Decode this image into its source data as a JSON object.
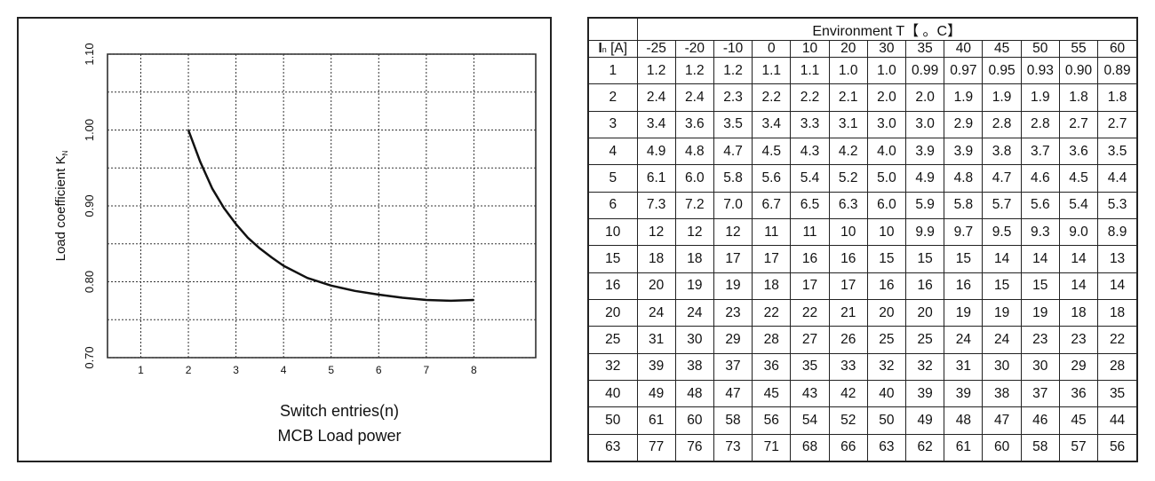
{
  "chart_data": {
    "type": "line",
    "xlabel": "Switch entries(n)",
    "caption": "MCB Load power",
    "ylabel": "Load coefficient K",
    "ylabel_sub": "N",
    "xlim": [
      0.3,
      9.3
    ],
    "ylim": [
      0.7,
      1.1
    ],
    "x_ticks": [
      1,
      2,
      3,
      4,
      5,
      6,
      7,
      8
    ],
    "y_ticks": [
      "0.70",
      "0.80",
      "0.90",
      "1.00",
      "1.10"
    ],
    "y_grid_minor": [
      0.75,
      0.85,
      0.95,
      1.05
    ],
    "grid": true,
    "series": [
      {
        "x": [
          2,
          2.25,
          2.5,
          2.75,
          3,
          3.25,
          3.5,
          3.75,
          4,
          4.5,
          5,
          5.5,
          6,
          6.5,
          7,
          7.5,
          8
        ],
        "values": [
          1.0,
          0.958,
          0.923,
          0.897,
          0.876,
          0.858,
          0.844,
          0.832,
          0.821,
          0.805,
          0.795,
          0.788,
          0.783,
          0.779,
          0.776,
          0.775,
          0.776
        ]
      }
    ]
  },
  "table": {
    "header_title": "Environment T【 。C】",
    "in_label_main": "I",
    "in_label_sub": "n",
    "in_label_rest": " [A]",
    "temps": [
      "-25",
      "-20",
      "-10",
      "0",
      "10",
      "20",
      "30",
      "35",
      "40",
      "45",
      "50",
      "55",
      "60"
    ],
    "rows": [
      [
        "1",
        "1.2",
        "1.2",
        "1.2",
        "1.1",
        "1.1",
        "1.0",
        "1.0",
        "0.99",
        "0.97",
        "0.95",
        "0.93",
        "0.90",
        "0.89"
      ],
      [
        "2",
        "2.4",
        "2.4",
        "2.3",
        "2.2",
        "2.2",
        "2.1",
        "2.0",
        "2.0",
        "1.9",
        "1.9",
        "1.9",
        "1.8",
        "1.8"
      ],
      [
        "3",
        "3.4",
        "3.6",
        "3.5",
        "3.4",
        "3.3",
        "3.1",
        "3.0",
        "3.0",
        "2.9",
        "2.8",
        "2.8",
        "2.7",
        "2.7"
      ],
      [
        "4",
        "4.9",
        "4.8",
        "4.7",
        "4.5",
        "4.3",
        "4.2",
        "4.0",
        "3.9",
        "3.9",
        "3.8",
        "3.7",
        "3.6",
        "3.5"
      ],
      [
        "5",
        "6.1",
        "6.0",
        "5.8",
        "5.6",
        "5.4",
        "5.2",
        "5.0",
        "4.9",
        "4.8",
        "4.7",
        "4.6",
        "4.5",
        "4.4"
      ],
      [
        "6",
        "7.3",
        "7.2",
        "7.0",
        "6.7",
        "6.5",
        "6.3",
        "6.0",
        "5.9",
        "5.8",
        "5.7",
        "5.6",
        "5.4",
        "5.3"
      ],
      [
        "10",
        "12",
        "12",
        "12",
        "11",
        "11",
        "10",
        "10",
        "9.9",
        "9.7",
        "9.5",
        "9.3",
        "9.0",
        "8.9"
      ],
      [
        "15",
        "18",
        "18",
        "17",
        "17",
        "16",
        "16",
        "15",
        "15",
        "15",
        "14",
        "14",
        "14",
        "13"
      ],
      [
        "16",
        "20",
        "19",
        "19",
        "18",
        "17",
        "17",
        "16",
        "16",
        "16",
        "15",
        "15",
        "14",
        "14"
      ],
      [
        "20",
        "24",
        "24",
        "23",
        "22",
        "22",
        "21",
        "20",
        "20",
        "19",
        "19",
        "19",
        "18",
        "18"
      ],
      [
        "25",
        "31",
        "30",
        "29",
        "28",
        "27",
        "26",
        "25",
        "25",
        "24",
        "24",
        "23",
        "23",
        "22"
      ],
      [
        "32",
        "39",
        "38",
        "37",
        "36",
        "35",
        "33",
        "32",
        "32",
        "31",
        "30",
        "30",
        "29",
        "28"
      ],
      [
        "40",
        "49",
        "48",
        "47",
        "45",
        "43",
        "42",
        "40",
        "39",
        "39",
        "38",
        "37",
        "36",
        "35"
      ],
      [
        "50",
        "61",
        "60",
        "58",
        "56",
        "54",
        "52",
        "50",
        "49",
        "48",
        "47",
        "46",
        "45",
        "44"
      ],
      [
        "63",
        "77",
        "76",
        "73",
        "71",
        "68",
        "66",
        "63",
        "62",
        "61",
        "60",
        "58",
        "57",
        "56"
      ]
    ]
  }
}
